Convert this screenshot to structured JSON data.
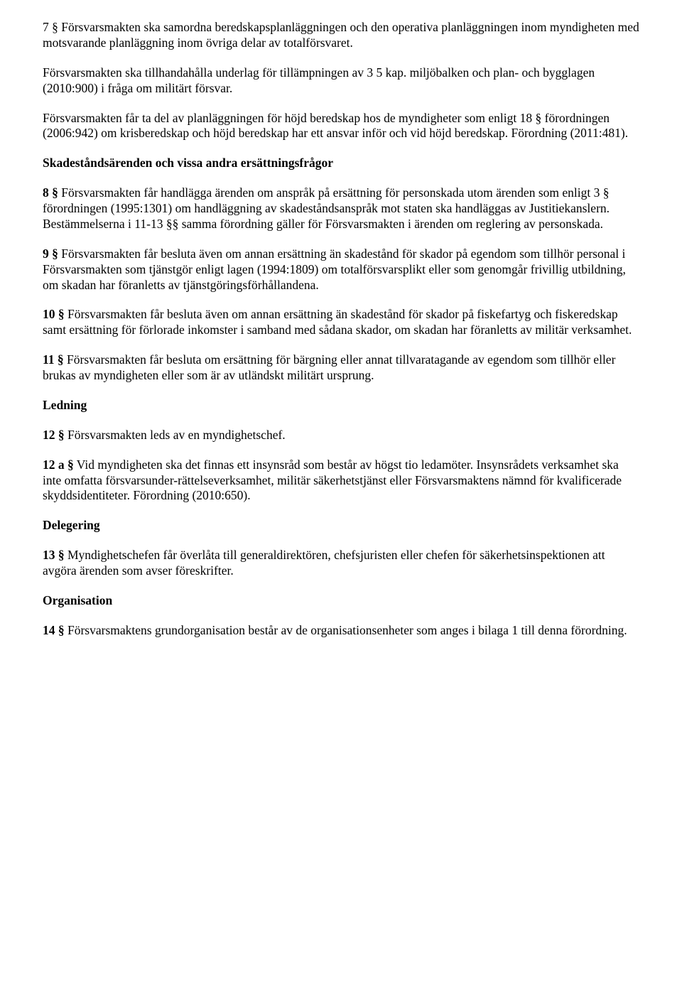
{
  "p7_1": "7 § Försvarsmakten ska samordna beredskapsplanläggningen och den operativa planläggningen inom myndigheten med motsvarande planläggning inom övriga delar av totalförsvaret.",
  "p7_2": "Försvarsmakten ska tillhandahålla underlag för tillämpningen av 3   5 kap. miljöbalken och plan- och bygglagen (2010:900) i fråga om militärt försvar.",
  "p7_3": "Försvarsmakten får ta del av planläggningen för höjd beredskap hos de myndigheter som enligt 18 § förordningen (2006:942) om krisberedskap och höjd beredskap har ett ansvar inför och vid höjd beredskap. Förordning (2011:481).",
  "h_skadestand": "Skadeståndsärenden och vissa andra ersättningsfrågor",
  "p8_num": "8 §",
  "p8_body": " Försvarsmakten får handlägga ärenden om anspråk på ersättning för personskada utom ärenden som enligt 3 § förordningen (1995:1301) om handläggning av skadeståndsanspråk mot staten ska handläggas av Justitiekanslern. Bestämmelserna i 11-13 §§ samma förordning gäller för Försvarsmakten i ärenden om reglering av personskada.",
  "p9_num": "9 §",
  "p9_body": " Försvarsmakten får besluta även om annan ersättning än skadestånd för skador på egendom som tillhör personal i Försvarsmakten som tjänstgör enligt lagen (1994:1809) om totalförsvarsplikt eller som genomgår frivillig utbildning, om skadan har föranletts av tjänstgöringsförhållandena.",
  "p10_num": "10 §",
  "p10_body": " Försvarsmakten får besluta även om annan ersättning än skadestånd för skador på fiskefartyg och fiskeredskap samt ersättning för förlorade inkomster i samband med sådana skador, om skadan har föranletts av militär verksamhet.",
  "p11_num": "11 §",
  "p11_body": " Försvarsmakten får besluta om ersättning för bärgning eller annat tillvaratagande av egendom som tillhör eller brukas av myndigheten eller som är av utländskt militärt ursprung.",
  "h_ledning": "Ledning",
  "p12_num": "12 §",
  "p12_body": " Försvarsmakten leds av en myndighetschef.",
  "p12a_num": "12 a §",
  "p12a_body": " Vid myndigheten ska det finnas ett insynsråd som består av högst tio ledamöter. Insynsrådets verksamhet ska inte omfatta försvarsunder-rättelseverksamhet, militär säkerhetstjänst eller Försvarsmaktens nämnd för kvalificerade skyddsidentiteter. Förordning (2010:650).",
  "h_delegering": "Delegering",
  "p13_num": "13 §",
  "p13_body": " Myndighetschefen får överlåta till generaldirektören, chefsjuristen eller chefen för säkerhetsinspektionen att avgöra ärenden som avser föreskrifter.",
  "h_organisation": "Organisation",
  "p14_num": "14 §",
  "p14_body": " Försvarsmaktens grundorganisation består av de organisationsenheter som anges i bilaga 1 till denna förordning."
}
